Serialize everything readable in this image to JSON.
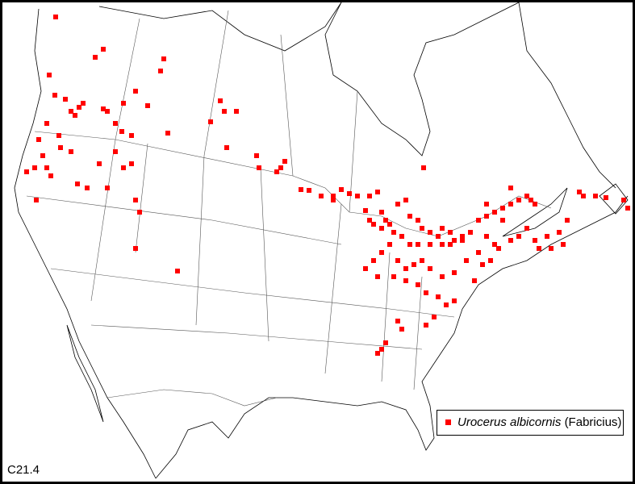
{
  "map_label": "C21.4",
  "legend": {
    "species": "Urocerus albicornis",
    "author": "(Fabricius)"
  }
}
